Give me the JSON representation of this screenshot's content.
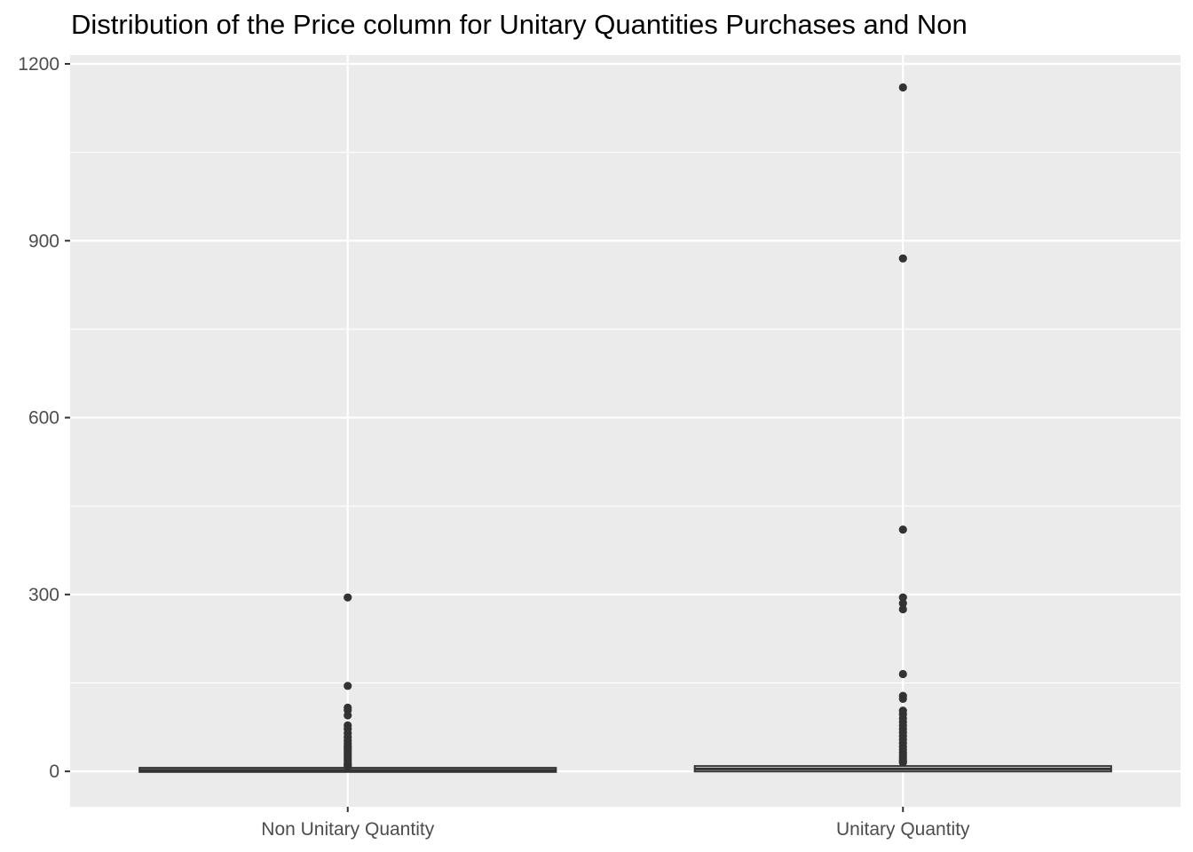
{
  "chart_data": {
    "type": "boxplot",
    "title": "Distribution of the Price column for Unitary Quantities Purchases and Non",
    "xlabel": "",
    "ylabel": "",
    "categories": [
      "Non Unitary Quantity",
      "Unitary Quantity"
    ],
    "ylim": [
      -60,
      1215
    ],
    "yticks": [
      0,
      300,
      600,
      900,
      1200
    ],
    "grid": true,
    "legend": "none",
    "colors": {
      "panel": "#ebebeb",
      "grid": "#ffffff",
      "box": "#333333",
      "text": "#4d4d4d"
    },
    "boxes": [
      {
        "name": "Non Unitary Quantity",
        "q1": 1.25,
        "median": 2.1,
        "q3": 3.75,
        "whisker_low": 0,
        "whisker_high": 7.5,
        "outliers": [
          295,
          145,
          108,
          104,
          95,
          78,
          72,
          65,
          58,
          52,
          47,
          43,
          40,
          37,
          34,
          31,
          28,
          25,
          22,
          19,
          16,
          13,
          11,
          9
        ]
      },
      {
        "name": "Unitary Quantity",
        "q1": 2.1,
        "median": 4.15,
        "q3": 6.75,
        "whisker_low": 0,
        "whisker_high": 13.7,
        "outliers": [
          1160,
          870,
          410,
          295,
          285,
          275,
          165,
          128,
          123,
          103,
          97,
          90,
          84,
          78,
          72,
          66,
          60,
          54,
          48,
          42,
          37,
          32,
          28,
          24,
          20,
          17,
          15
        ]
      }
    ]
  }
}
